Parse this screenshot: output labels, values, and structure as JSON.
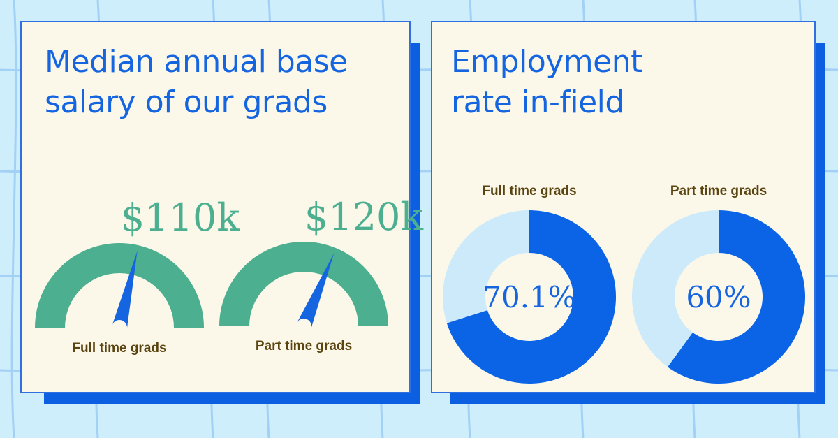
{
  "colors": {
    "background": "#cfeefc",
    "grid_line": "#a3d0f5",
    "card_fill": "#fbf8ea",
    "card_border": "#2f6fe0",
    "shadow": "#0b5fe0",
    "title": "#1565e0",
    "gauge": "#4caf90",
    "needle": "#1565e0",
    "gauge_value": "#4caf90",
    "caption": "#5a4410",
    "donut_filled": "#0b63e5",
    "donut_empty": "#cdeafb",
    "donut_value": "#1565e0"
  },
  "salary_card": {
    "title": "Median annual base\nsalary of our grads"
  },
  "employment_card": {
    "title": "Employment\nrate in-field"
  },
  "chart_data": [
    {
      "type": "gauge",
      "title": "Median annual base salary of our grads",
      "unit": "USD per year",
      "categories": [
        "Full time grads",
        "Part time grads"
      ],
      "values": [
        110000,
        120000
      ],
      "value_labels": [
        "$110k",
        "$120k"
      ]
    },
    {
      "type": "pie",
      "title": "Employment rate in-field",
      "unit": "percent",
      "categories": [
        "Full time grads",
        "Part time grads"
      ],
      "values": [
        70.1,
        60
      ],
      "value_labels": [
        "70.1%",
        "60%"
      ]
    }
  ]
}
